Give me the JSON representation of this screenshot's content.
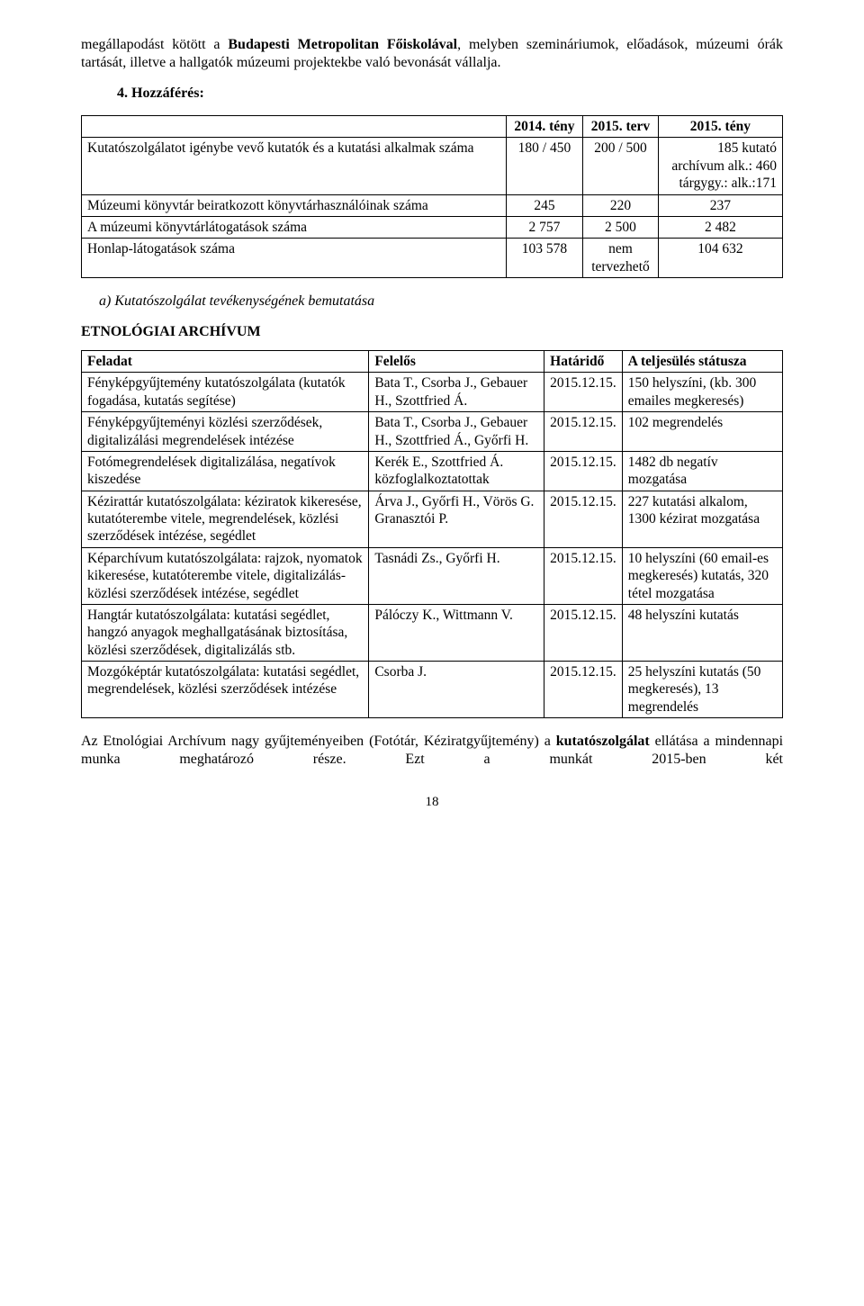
{
  "intro": {
    "p1_pre": "megállapodást kötött a ",
    "p1_bold": "Budapesti Metropolitan Főiskolával",
    "p1_post": ", melyben szemináriumok, előadások, múzeumi órák tartását, illetve a hallgatók múzeumi projektekbe való bevonását vállalja.",
    "section": "4.   Hozzáférés:"
  },
  "table1": {
    "h1": "2014. tény",
    "h2": "2015. terv",
    "h3": "2015. tény",
    "r1_label": "Kutatószolgálatot igénybe vevő kutatók és a kutatási alkalmak száma",
    "r1_c1": "180 / 450",
    "r1_c2": "200 / 500",
    "r1_c3": "185 kutató\narchívum alk.: 460\ntárgygy.: alk.:171",
    "r2_label": "Múzeumi könyvtár beiratkozott könyvtárhasználóinak száma",
    "r2_c1": "245",
    "r2_c2": "220",
    "r2_c3": "237",
    "r3_label": "A múzeumi könyvtárlátogatások száma",
    "r3_c1": "2 757",
    "r3_c2": "2 500",
    "r3_c3": "2 482",
    "r4_label": "Honlap-látogatások száma",
    "r4_c1": "103 578",
    "r4_c2": "nem\ntervezhető",
    "r4_c3": "104 632"
  },
  "mid": {
    "list_a": "a) Kutatószolgálat tevékenységének bemutatása",
    "archive_head": "ETNOLÓGIAI ARCHÍVUM"
  },
  "table2": {
    "h1": "Feladat",
    "h2": "Felelős",
    "h3": "Határidő",
    "h4": "A teljesülés státusza",
    "rows": [
      {
        "f": "Fényképgyűjtemény kutatószolgálata (kutatók fogadása, kutatás segítése)",
        "fel": "Bata T., Csorba J., Gebauer H., Szottfried Á.",
        "hat": "2015.12.15.",
        "st": "150 helyszíni, (kb. 300 emailes megkeresés)"
      },
      {
        "f": "Fényképgyűjteményi közlési szerződések, digitalizálási megrendelések intézése",
        "fel": "Bata T., Csorba J., Gebauer H., Szottfried Á., Győrfi H.",
        "hat": "2015.12.15.",
        "st": "102 megrendelés"
      },
      {
        "f": "Fotómegrendelések digitalizálása, negatívok kiszedése",
        "fel": "Kerék E., Szottfried Á. közfoglalkoztatottak",
        "hat": "2015.12.15.",
        "st": "1482 db negatív mozgatása"
      },
      {
        "f": "Kézirattár kutatószolgálata: kéziratok kikeresése, kutatóterembe vitele, megrendelések, közlési szerződések intézése, segédlet",
        "fel": "Árva J., Győrfi H., Vörös G. Granasztói P.",
        "hat": "2015.12.15.",
        "st": "227 kutatási alkalom, 1300 kézirat mozgatása"
      },
      {
        "f": "Képarchívum kutatószolgálata: rajzok, nyomatok kikeresése, kutatóterembe vitele, digitalizálás-közlési szerződések intézése, segédlet",
        "fel": "Tasnádi Zs., Győrfi H.",
        "hat": "2015.12.15.",
        "st": "10 helyszíni (60 email-es megkeresés) kutatás, 320 tétel mozgatása"
      },
      {
        "f": "Hangtár kutatószolgálata: kutatási segédlet, hangzó anyagok meghallgatásának biztosítása, közlési szerződések, digitalizálás stb.",
        "fel": "Pálóczy K., Wittmann V.",
        "hat": "2015.12.15.",
        "st": "48 helyszíni kutatás"
      },
      {
        "f": "Mozgóképtár kutatószolgálata: kutatási segédlet, megrendelések, közlési szerződések intézése",
        "fel": "Csorba J.",
        "hat": "2015.12.15.",
        "st": "25 helyszíni kutatás (50 megkeresés), 13 megrendelés"
      }
    ]
  },
  "closing": {
    "p_pre": "Az Etnológiai Archívum nagy gyűjteményeiben (Fotótár, Kéziratgyűjtemény) a ",
    "p_bold": "kutatószolgálat",
    "p_post": " ellátása a mindennapi munka meghatározó része. Ezt a munkát 2015-ben két"
  },
  "page_num": "18"
}
